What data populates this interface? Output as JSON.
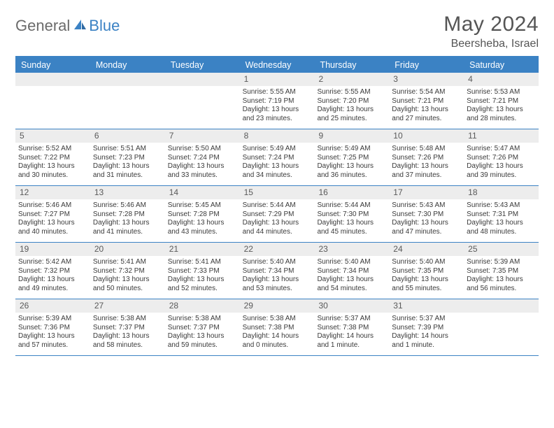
{
  "logo": {
    "part1": "General",
    "part2": "Blue"
  },
  "title": "May 2024",
  "location": "Beersheba, Israel",
  "colors": {
    "accent": "#3b82c4",
    "header_bg": "#3b82c4",
    "header_text": "#ffffff",
    "daynum_bg": "#ededed",
    "daynum_text": "#5a5a5a",
    "body_text": "#3a3a3a",
    "logo_gray": "#6b6b6b"
  },
  "day_headers": [
    "Sunday",
    "Monday",
    "Tuesday",
    "Wednesday",
    "Thursday",
    "Friday",
    "Saturday"
  ],
  "weeks": [
    [
      {
        "n": "",
        "empty": true
      },
      {
        "n": "",
        "empty": true
      },
      {
        "n": "",
        "empty": true
      },
      {
        "n": "1",
        "sunrise": "Sunrise: 5:55 AM",
        "sunset": "Sunset: 7:19 PM",
        "daylight1": "Daylight: 13 hours",
        "daylight2": "and 23 minutes."
      },
      {
        "n": "2",
        "sunrise": "Sunrise: 5:55 AM",
        "sunset": "Sunset: 7:20 PM",
        "daylight1": "Daylight: 13 hours",
        "daylight2": "and 25 minutes."
      },
      {
        "n": "3",
        "sunrise": "Sunrise: 5:54 AM",
        "sunset": "Sunset: 7:21 PM",
        "daylight1": "Daylight: 13 hours",
        "daylight2": "and 27 minutes."
      },
      {
        "n": "4",
        "sunrise": "Sunrise: 5:53 AM",
        "sunset": "Sunset: 7:21 PM",
        "daylight1": "Daylight: 13 hours",
        "daylight2": "and 28 minutes."
      }
    ],
    [
      {
        "n": "5",
        "sunrise": "Sunrise: 5:52 AM",
        "sunset": "Sunset: 7:22 PM",
        "daylight1": "Daylight: 13 hours",
        "daylight2": "and 30 minutes."
      },
      {
        "n": "6",
        "sunrise": "Sunrise: 5:51 AM",
        "sunset": "Sunset: 7:23 PM",
        "daylight1": "Daylight: 13 hours",
        "daylight2": "and 31 minutes."
      },
      {
        "n": "7",
        "sunrise": "Sunrise: 5:50 AM",
        "sunset": "Sunset: 7:24 PM",
        "daylight1": "Daylight: 13 hours",
        "daylight2": "and 33 minutes."
      },
      {
        "n": "8",
        "sunrise": "Sunrise: 5:49 AM",
        "sunset": "Sunset: 7:24 PM",
        "daylight1": "Daylight: 13 hours",
        "daylight2": "and 34 minutes."
      },
      {
        "n": "9",
        "sunrise": "Sunrise: 5:49 AM",
        "sunset": "Sunset: 7:25 PM",
        "daylight1": "Daylight: 13 hours",
        "daylight2": "and 36 minutes."
      },
      {
        "n": "10",
        "sunrise": "Sunrise: 5:48 AM",
        "sunset": "Sunset: 7:26 PM",
        "daylight1": "Daylight: 13 hours",
        "daylight2": "and 37 minutes."
      },
      {
        "n": "11",
        "sunrise": "Sunrise: 5:47 AM",
        "sunset": "Sunset: 7:26 PM",
        "daylight1": "Daylight: 13 hours",
        "daylight2": "and 39 minutes."
      }
    ],
    [
      {
        "n": "12",
        "sunrise": "Sunrise: 5:46 AM",
        "sunset": "Sunset: 7:27 PM",
        "daylight1": "Daylight: 13 hours",
        "daylight2": "and 40 minutes."
      },
      {
        "n": "13",
        "sunrise": "Sunrise: 5:46 AM",
        "sunset": "Sunset: 7:28 PM",
        "daylight1": "Daylight: 13 hours",
        "daylight2": "and 41 minutes."
      },
      {
        "n": "14",
        "sunrise": "Sunrise: 5:45 AM",
        "sunset": "Sunset: 7:28 PM",
        "daylight1": "Daylight: 13 hours",
        "daylight2": "and 43 minutes."
      },
      {
        "n": "15",
        "sunrise": "Sunrise: 5:44 AM",
        "sunset": "Sunset: 7:29 PM",
        "daylight1": "Daylight: 13 hours",
        "daylight2": "and 44 minutes."
      },
      {
        "n": "16",
        "sunrise": "Sunrise: 5:44 AM",
        "sunset": "Sunset: 7:30 PM",
        "daylight1": "Daylight: 13 hours",
        "daylight2": "and 45 minutes."
      },
      {
        "n": "17",
        "sunrise": "Sunrise: 5:43 AM",
        "sunset": "Sunset: 7:30 PM",
        "daylight1": "Daylight: 13 hours",
        "daylight2": "and 47 minutes."
      },
      {
        "n": "18",
        "sunrise": "Sunrise: 5:43 AM",
        "sunset": "Sunset: 7:31 PM",
        "daylight1": "Daylight: 13 hours",
        "daylight2": "and 48 minutes."
      }
    ],
    [
      {
        "n": "19",
        "sunrise": "Sunrise: 5:42 AM",
        "sunset": "Sunset: 7:32 PM",
        "daylight1": "Daylight: 13 hours",
        "daylight2": "and 49 minutes."
      },
      {
        "n": "20",
        "sunrise": "Sunrise: 5:41 AM",
        "sunset": "Sunset: 7:32 PM",
        "daylight1": "Daylight: 13 hours",
        "daylight2": "and 50 minutes."
      },
      {
        "n": "21",
        "sunrise": "Sunrise: 5:41 AM",
        "sunset": "Sunset: 7:33 PM",
        "daylight1": "Daylight: 13 hours",
        "daylight2": "and 52 minutes."
      },
      {
        "n": "22",
        "sunrise": "Sunrise: 5:40 AM",
        "sunset": "Sunset: 7:34 PM",
        "daylight1": "Daylight: 13 hours",
        "daylight2": "and 53 minutes."
      },
      {
        "n": "23",
        "sunrise": "Sunrise: 5:40 AM",
        "sunset": "Sunset: 7:34 PM",
        "daylight1": "Daylight: 13 hours",
        "daylight2": "and 54 minutes."
      },
      {
        "n": "24",
        "sunrise": "Sunrise: 5:40 AM",
        "sunset": "Sunset: 7:35 PM",
        "daylight1": "Daylight: 13 hours",
        "daylight2": "and 55 minutes."
      },
      {
        "n": "25",
        "sunrise": "Sunrise: 5:39 AM",
        "sunset": "Sunset: 7:35 PM",
        "daylight1": "Daylight: 13 hours",
        "daylight2": "and 56 minutes."
      }
    ],
    [
      {
        "n": "26",
        "sunrise": "Sunrise: 5:39 AM",
        "sunset": "Sunset: 7:36 PM",
        "daylight1": "Daylight: 13 hours",
        "daylight2": "and 57 minutes."
      },
      {
        "n": "27",
        "sunrise": "Sunrise: 5:38 AM",
        "sunset": "Sunset: 7:37 PM",
        "daylight1": "Daylight: 13 hours",
        "daylight2": "and 58 minutes."
      },
      {
        "n": "28",
        "sunrise": "Sunrise: 5:38 AM",
        "sunset": "Sunset: 7:37 PM",
        "daylight1": "Daylight: 13 hours",
        "daylight2": "and 59 minutes."
      },
      {
        "n": "29",
        "sunrise": "Sunrise: 5:38 AM",
        "sunset": "Sunset: 7:38 PM",
        "daylight1": "Daylight: 14 hours",
        "daylight2": "and 0 minutes."
      },
      {
        "n": "30",
        "sunrise": "Sunrise: 5:37 AM",
        "sunset": "Sunset: 7:38 PM",
        "daylight1": "Daylight: 14 hours",
        "daylight2": "and 1 minute."
      },
      {
        "n": "31",
        "sunrise": "Sunrise: 5:37 AM",
        "sunset": "Sunset: 7:39 PM",
        "daylight1": "Daylight: 14 hours",
        "daylight2": "and 1 minute."
      },
      {
        "n": "",
        "empty": true
      }
    ]
  ]
}
